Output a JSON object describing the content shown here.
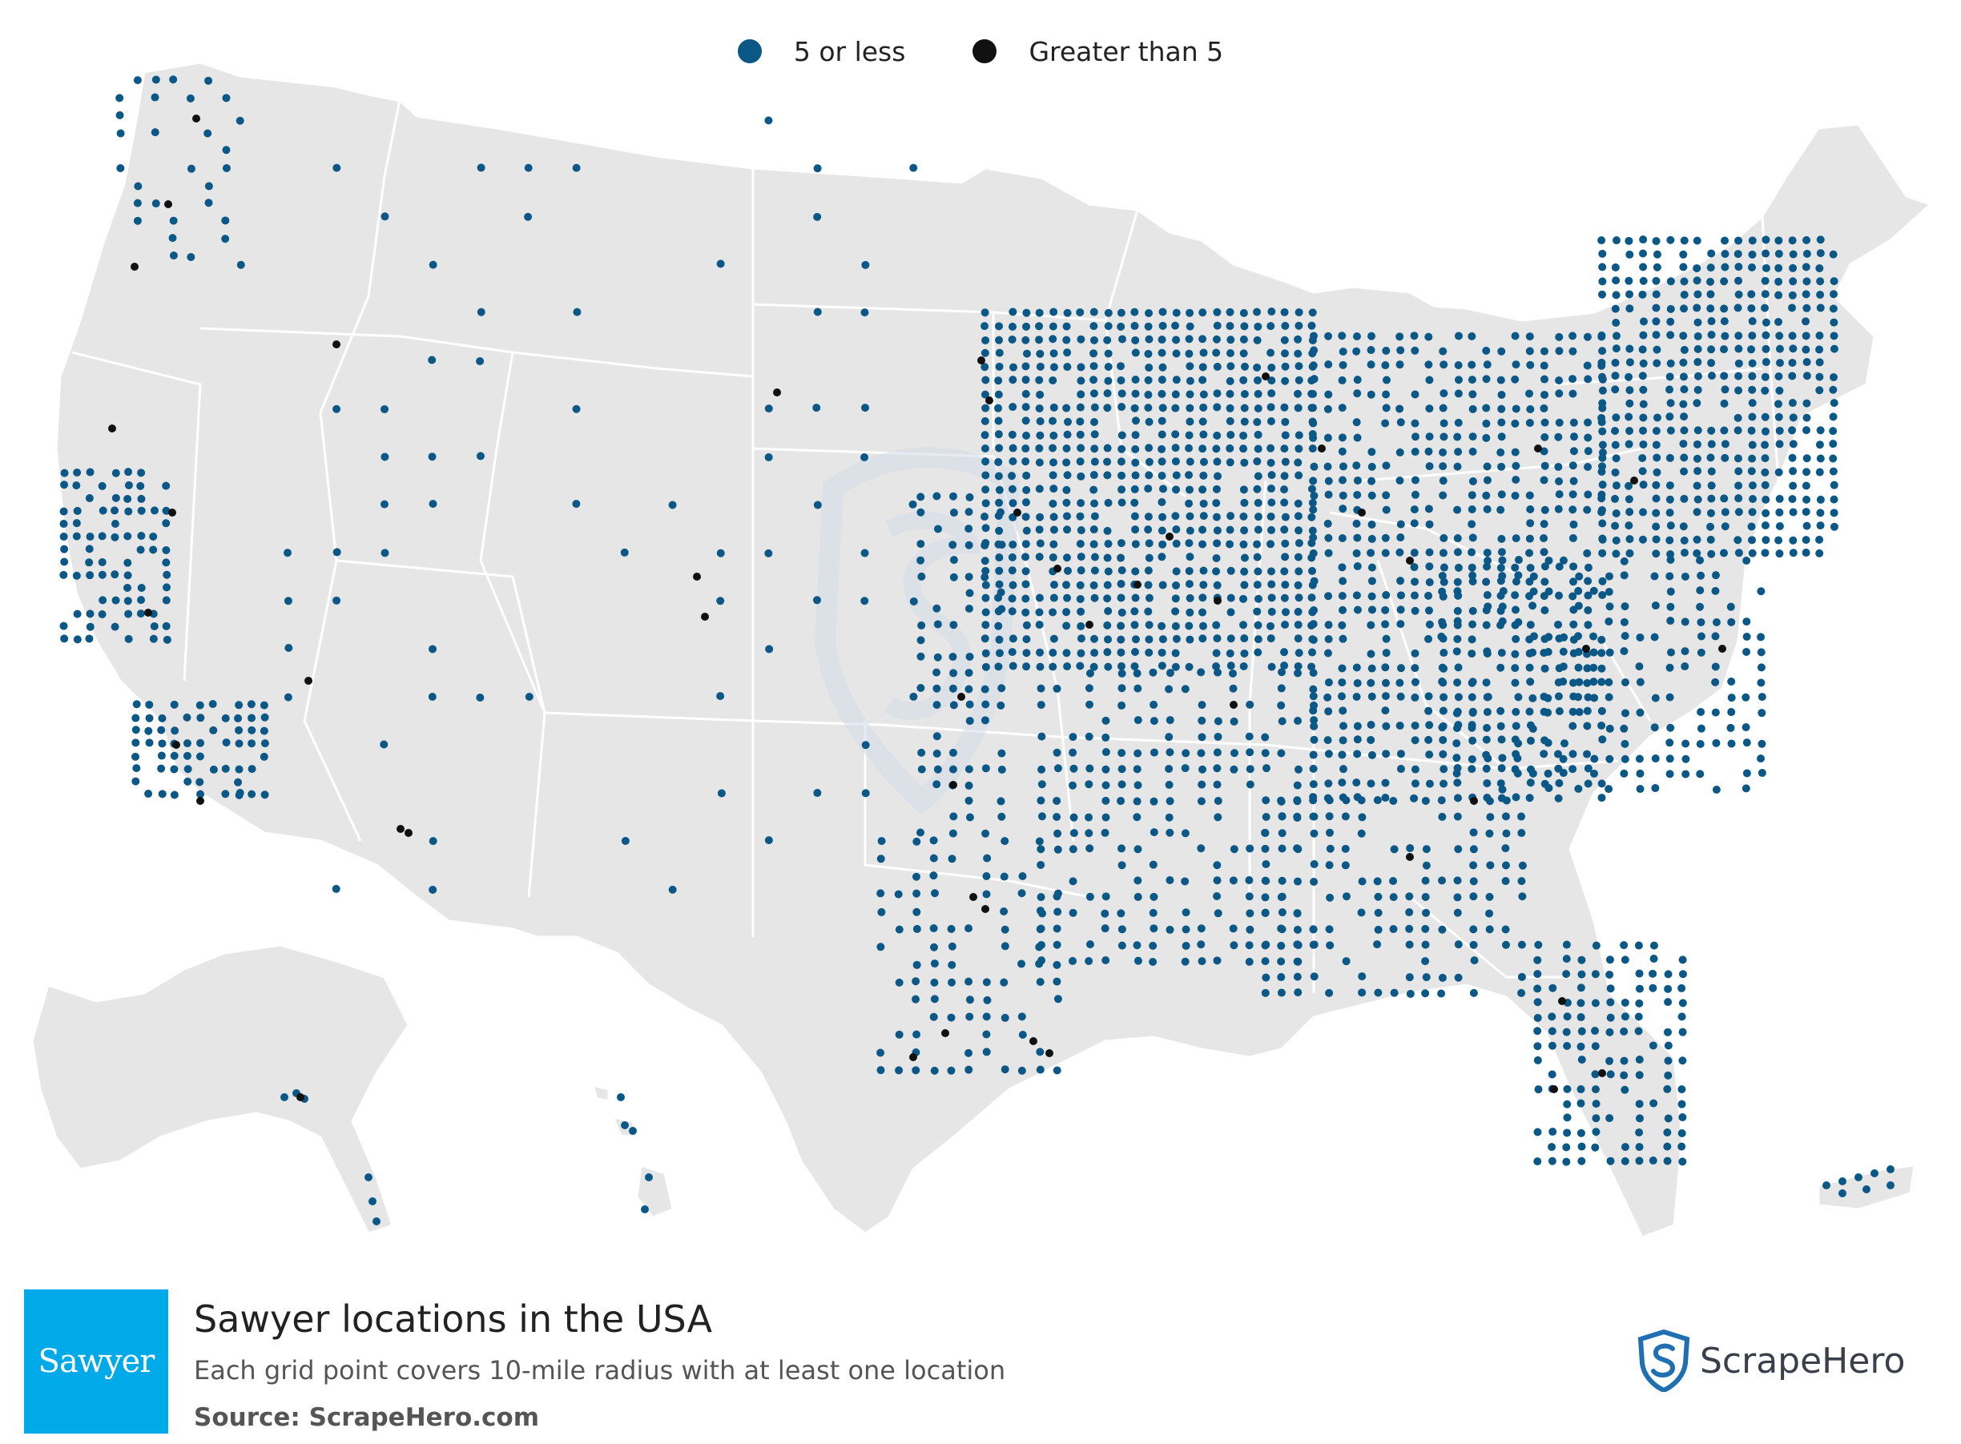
{
  "legend": {
    "items": [
      {
        "label": "5 or less",
        "color": "#0b5887"
      },
      {
        "label": "Greater than 5",
        "color": "#111111"
      }
    ]
  },
  "map": {
    "land_color": "#e6e6e6",
    "border_color": "#ffffff",
    "watermark_color": "#dfe4ea"
  },
  "footer": {
    "logo_text": "Sawyer",
    "logo_color": "#00a9e8",
    "title": "Sawyer locations in the USA",
    "subtitle": "Each grid point covers 10-mile radius with at least one location",
    "source_prefix": "Source: ",
    "source_name": "ScrapeHero.com"
  },
  "brand": {
    "name": "ScrapeHero",
    "icon": "shield-s-icon",
    "color": "#1f6fb2"
  }
}
